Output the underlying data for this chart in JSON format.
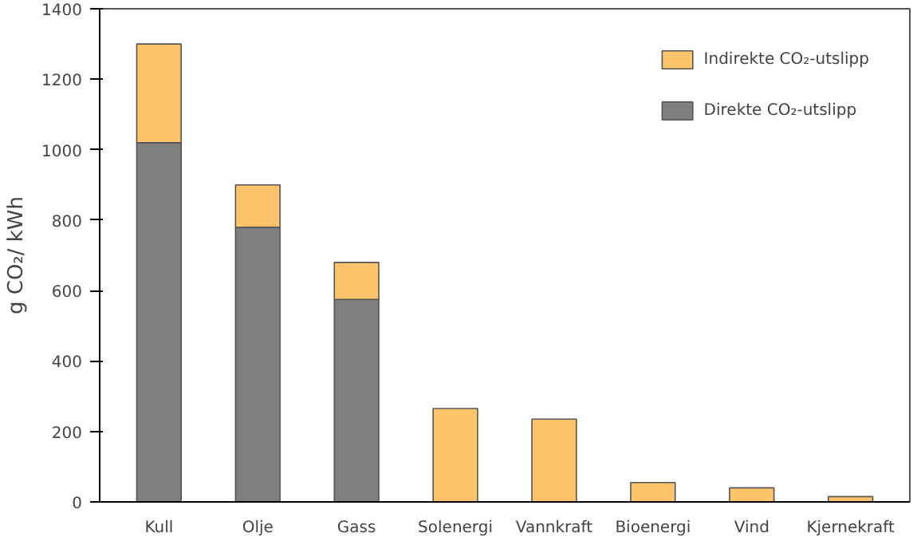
{
  "chart_data": {
    "type": "bar",
    "stacked": true,
    "ylabel": "g CO₂/ kWh",
    "categories": [
      "Kull",
      "Olje",
      "Gass",
      "Solenergi",
      "Vannkraft",
      "Bioenergi",
      "Vind",
      "Kjernekraft"
    ],
    "series": [
      {
        "name": "Direkte CO₂-utslipp",
        "color": "#7f7f7f",
        "values": [
          1020,
          780,
          575,
          null,
          null,
          null,
          null,
          null
        ]
      },
      {
        "name": "Indirekte CO₂-utslipp",
        "color": "#fdc46c",
        "values": [
          280,
          120,
          105,
          265,
          235,
          55,
          40,
          15
        ]
      }
    ],
    "ylim": [
      0,
      1400
    ],
    "yticks": [
      0,
      200,
      400,
      600,
      800,
      1000,
      1200,
      1400
    ],
    "grid": false,
    "legend": "top right"
  }
}
